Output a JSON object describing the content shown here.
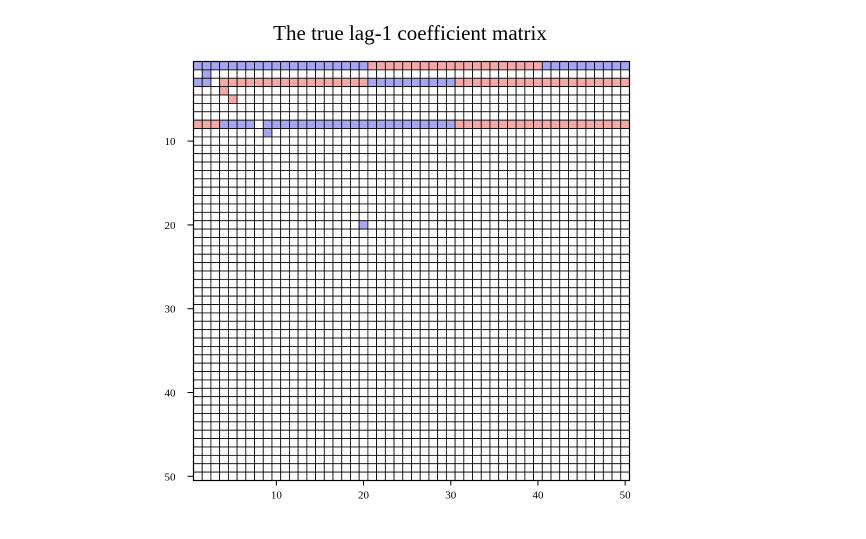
{
  "chart_data": {
    "type": "heatmap",
    "title": "The true lag-1 coefficient matrix",
    "xlabel": "",
    "ylabel": "",
    "rows": 50,
    "cols": 50,
    "xlim": [
      1,
      50
    ],
    "ylim": [
      1,
      50
    ],
    "x_ticks": [
      10,
      20,
      30,
      40,
      50
    ],
    "y_ticks": [
      10,
      20,
      30,
      40,
      50
    ],
    "y_axis_direction": "top-to-bottom",
    "grid": true,
    "legend": "none",
    "colors": {
      "positive": "#f4a8a8",
      "negative": "#a6a6f0",
      "zero": "#ffffff",
      "grid": "#000000"
    },
    "nonzero_cells": [
      {
        "row": 1,
        "col_from": 1,
        "col_to": 20,
        "sign": "negative"
      },
      {
        "row": 1,
        "col_from": 21,
        "col_to": 40,
        "sign": "positive"
      },
      {
        "row": 1,
        "col_from": 41,
        "col_to": 50,
        "sign": "negative"
      },
      {
        "row": 2,
        "col_from": 2,
        "col_to": 2,
        "sign": "negative"
      },
      {
        "row": 3,
        "col_from": 1,
        "col_to": 2,
        "sign": "negative"
      },
      {
        "row": 3,
        "col_from": 4,
        "col_to": 20,
        "sign": "positive"
      },
      {
        "row": 3,
        "col_from": 21,
        "col_to": 30,
        "sign": "negative"
      },
      {
        "row": 3,
        "col_from": 31,
        "col_to": 50,
        "sign": "positive"
      },
      {
        "row": 4,
        "col_from": 4,
        "col_to": 4,
        "sign": "positive"
      },
      {
        "row": 5,
        "col_from": 5,
        "col_to": 5,
        "sign": "positive"
      },
      {
        "row": 8,
        "col_from": 1,
        "col_to": 3,
        "sign": "positive"
      },
      {
        "row": 8,
        "col_from": 4,
        "col_to": 7,
        "sign": "negative"
      },
      {
        "row": 8,
        "col_from": 9,
        "col_to": 30,
        "sign": "negative"
      },
      {
        "row": 8,
        "col_from": 31,
        "col_to": 50,
        "sign": "positive"
      },
      {
        "row": 9,
        "col_from": 9,
        "col_to": 9,
        "sign": "negative"
      },
      {
        "row": 20,
        "col_from": 20,
        "col_to": 20,
        "sign": "negative"
      }
    ]
  }
}
